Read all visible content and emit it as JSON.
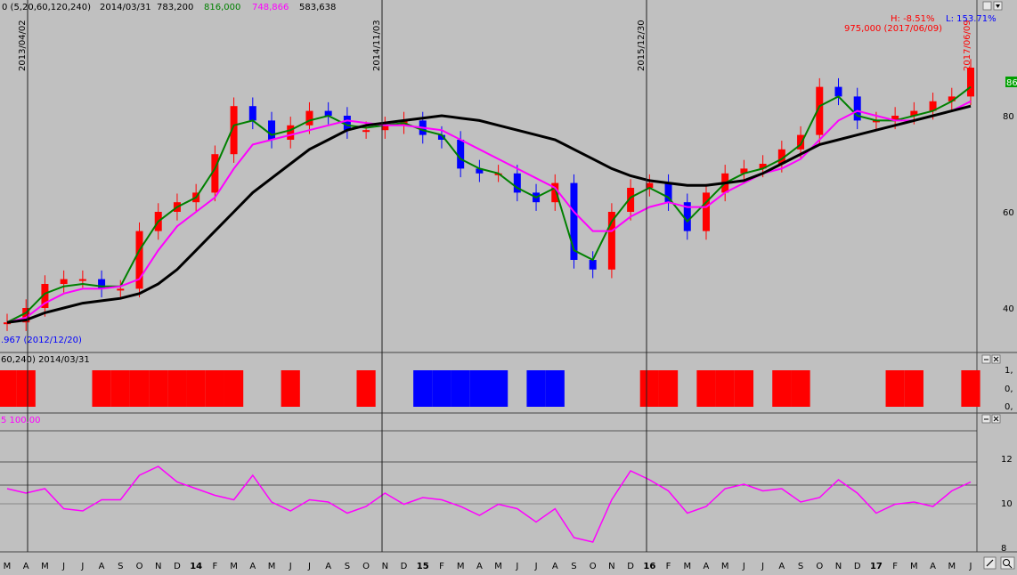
{
  "header": {
    "params": "0 (5,20,60,120,240)",
    "date": "2014/03/31",
    "val_black": "783,200",
    "val_green": "816,000",
    "val_magenta": "748,866",
    "val_black2": "583,638"
  },
  "annotations": {
    "high_pct": "H: -8.51%",
    "low_pct": "L: 153.71%",
    "high_point": "975,000 (2017/06/09)",
    "low_point": ".967 (2012/12/20)",
    "right_badge": "86"
  },
  "markers": [
    "2013/04/02",
    "2014/11/03",
    "2015/12/30",
    "2017/06/09"
  ],
  "panel2": {
    "header": "60,240) 2014/03/31",
    "y_ticks": [
      "1,",
      "0,",
      "0,"
    ]
  },
  "panel3": {
    "header": "5 100.00",
    "y_ticks": [
      "12",
      "10",
      "8"
    ]
  },
  "x_axis": [
    "M",
    "A",
    "M",
    "J",
    "J",
    "A",
    "S",
    "O",
    "N",
    "D",
    "14",
    "F",
    "M",
    "A",
    "M",
    "J",
    "J",
    "A",
    "S",
    "O",
    "N",
    "D",
    "15",
    "F",
    "M",
    "A",
    "M",
    "J",
    "J",
    "A",
    "S",
    "O",
    "N",
    "D",
    "16",
    "F",
    "M",
    "A",
    "M",
    "J",
    "J",
    "A",
    "S",
    "O",
    "N",
    "D",
    "17",
    "F",
    "M",
    "A",
    "M",
    "J"
  ],
  "colors": {
    "price_up": "#ff0000",
    "price_down": "#0000ff",
    "ma_green": "#008000",
    "ma_magenta": "#ff00ff",
    "ma_black": "#000000",
    "osc": "#ff00ff",
    "bg": "#c0c0c0"
  },
  "chart_data": [
    {
      "type": "line",
      "x": [
        0,
        1,
        2,
        3,
        4,
        5,
        6,
        7,
        8,
        9,
        10,
        11,
        12,
        13,
        14,
        15,
        16,
        17,
        18,
        19,
        20,
        21,
        22,
        23,
        24,
        25,
        26,
        27,
        28,
        29,
        30,
        31,
        32,
        33,
        34,
        35,
        36,
        37,
        38,
        39,
        40,
        41,
        42,
        43,
        44,
        45,
        46,
        47,
        48,
        49,
        50,
        51
      ],
      "y_ticks": [
        "80",
        "60",
        "40"
      ],
      "series": [
        {
          "values": [
            370,
            400,
            450,
            460,
            460,
            440,
            440,
            560,
            600,
            620,
            640,
            720,
            820,
            790,
            750,
            780,
            810,
            800,
            770,
            770,
            780,
            790,
            760,
            750,
            690,
            680,
            680,
            640,
            620,
            660,
            500,
            480,
            600,
            650,
            660,
            620,
            560,
            640,
            680,
            690,
            700,
            730,
            760,
            860,
            840,
            790,
            790,
            800,
            810,
            830,
            840,
            900
          ]
        },
        {
          "values": [
            370,
            390,
            430,
            445,
            450,
            445,
            445,
            520,
            580,
            610,
            630,
            690,
            780,
            790,
            760,
            770,
            790,
            800,
            780,
            775,
            780,
            785,
            770,
            760,
            710,
            690,
            680,
            650,
            630,
            650,
            520,
            500,
            580,
            630,
            650,
            630,
            580,
            620,
            660,
            680,
            690,
            710,
            740,
            820,
            840,
            800,
            790,
            790,
            800,
            810,
            830,
            860
          ]
        },
        {
          "values": [
            370,
            380,
            410,
            430,
            440,
            440,
            445,
            460,
            520,
            570,
            600,
            630,
            690,
            740,
            750,
            760,
            770,
            780,
            790,
            785,
            780,
            780,
            775,
            770,
            750,
            730,
            710,
            690,
            670,
            650,
            600,
            560,
            560,
            590,
            610,
            620,
            610,
            610,
            640,
            660,
            680,
            690,
            710,
            750,
            790,
            810,
            800,
            790,
            790,
            800,
            810,
            830
          ]
        },
        {
          "values": [
            370,
            375,
            390,
            400,
            410,
            415,
            420,
            430,
            450,
            480,
            520,
            560,
            600,
            640,
            670,
            700,
            730,
            750,
            770,
            780,
            785,
            790,
            795,
            800,
            795,
            790,
            780,
            770,
            760,
            750,
            730,
            710,
            690,
            675,
            665,
            660,
            655,
            655,
            660,
            665,
            680,
            700,
            720,
            740,
            750,
            760,
            770,
            780,
            790,
            800,
            810,
            820
          ]
        }
      ]
    },
    {
      "type": "bar",
      "note_y": "1 = red, -1 = blue",
      "values": [
        1,
        1,
        0,
        0,
        0,
        1,
        1,
        1,
        1,
        1,
        1,
        1,
        1,
        0,
        0,
        1,
        0,
        0,
        0,
        1,
        0,
        0,
        -1,
        -1,
        -1,
        -1,
        -1,
        0,
        -1,
        -1,
        0,
        0,
        0,
        0,
        1,
        1,
        0,
        1,
        1,
        1,
        0,
        1,
        1,
        0,
        0,
        0,
        0,
        1,
        1,
        0,
        0,
        1
      ]
    },
    {
      "type": "line",
      "y_ticks": [
        "12",
        "10",
        "8"
      ],
      "series": [
        {
          "values": [
            106,
            104,
            106,
            97,
            96,
            101,
            101,
            112,
            116,
            109,
            106,
            103,
            101,
            112,
            100,
            96,
            101,
            100,
            95,
            98,
            104,
            99,
            102,
            101,
            98,
            94,
            99,
            97,
            91,
            97,
            84,
            82,
            101,
            114,
            110,
            105,
            95,
            98,
            106,
            108,
            105,
            106,
            100,
            102,
            110,
            104,
            95,
            99,
            100,
            98,
            105,
            109
          ]
        }
      ]
    }
  ]
}
